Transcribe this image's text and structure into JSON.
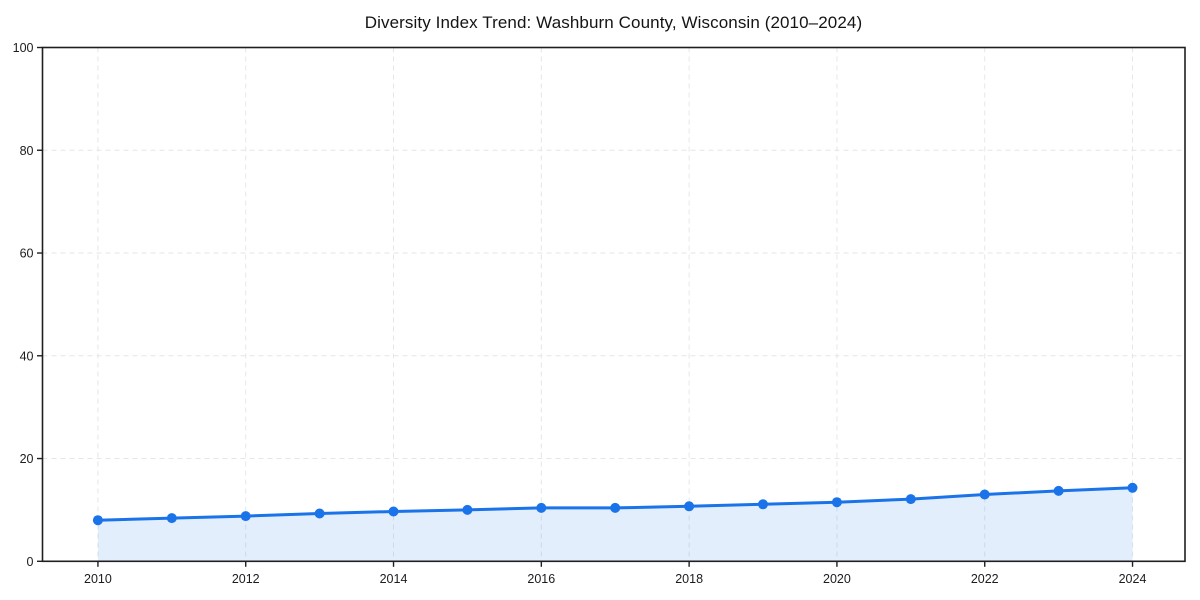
{
  "chart_data": {
    "type": "area",
    "title": "Diversity Index Trend: Washburn County, Wisconsin (2010–2024)",
    "x": [
      2010,
      2011,
      2012,
      2013,
      2014,
      2015,
      2016,
      2017,
      2018,
      2019,
      2020,
      2021,
      2022,
      2023,
      2024
    ],
    "values": [
      8.0,
      8.4,
      8.8,
      9.3,
      9.7,
      10.0,
      10.4,
      10.4,
      10.7,
      11.1,
      11.5,
      12.1,
      13.0,
      13.7,
      14.3
    ],
    "xlabel": "",
    "ylabel": "",
    "xlim": [
      2009.25,
      2024.71
    ],
    "ylim": [
      0,
      100
    ],
    "xticks": [
      2010,
      2012,
      2014,
      2016,
      2018,
      2020,
      2022,
      2024
    ],
    "yticks": [
      0,
      20,
      40,
      60,
      80,
      100
    ],
    "grid": true,
    "grid_style": "dashed",
    "legend": false,
    "colors": {
      "line": "#1a73e8",
      "marker": "#1a73e8",
      "fill": "rgba(26,115,232,0.12)",
      "grid": "#e6e6e6",
      "spine": "#1f1f1f",
      "tick_label": "#1c1c1c",
      "title": "#141414",
      "background": "#ffffff"
    }
  }
}
